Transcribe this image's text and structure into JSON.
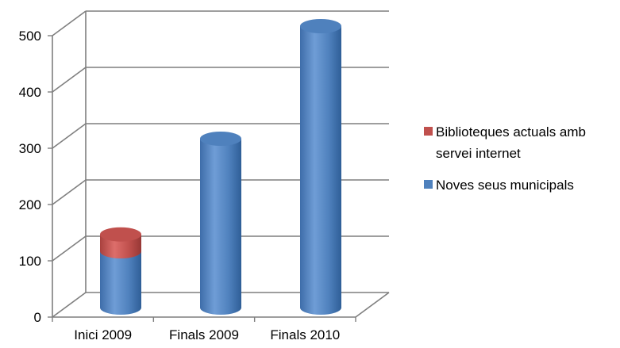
{
  "chart_data": {
    "type": "bar",
    "stacked": true,
    "style": "3d-cylinder",
    "categories": [
      "Inici 2009",
      "Finals 2009",
      "Finals 2010"
    ],
    "series": [
      {
        "name": "Noves seus municipals",
        "color": "#4F81BD",
        "values": [
          100,
          300,
          500
        ]
      },
      {
        "name": "Biblioteques actuals amb servei internet",
        "color": "#C0504D",
        "values": [
          30,
          0,
          0
        ]
      }
    ],
    "yticks": [
      "0",
      "100",
      "200",
      "300",
      "400",
      "500"
    ],
    "ylim": [
      0,
      500
    ],
    "grid": true,
    "legend_position": "right",
    "legend": [
      {
        "lines": [
          "Biblioteques actuals amb",
          "servei internet"
        ],
        "color": "#C0504D"
      },
      {
        "lines": [
          "Noves seus municipals"
        ],
        "color": "#4F81BD"
      }
    ]
  }
}
